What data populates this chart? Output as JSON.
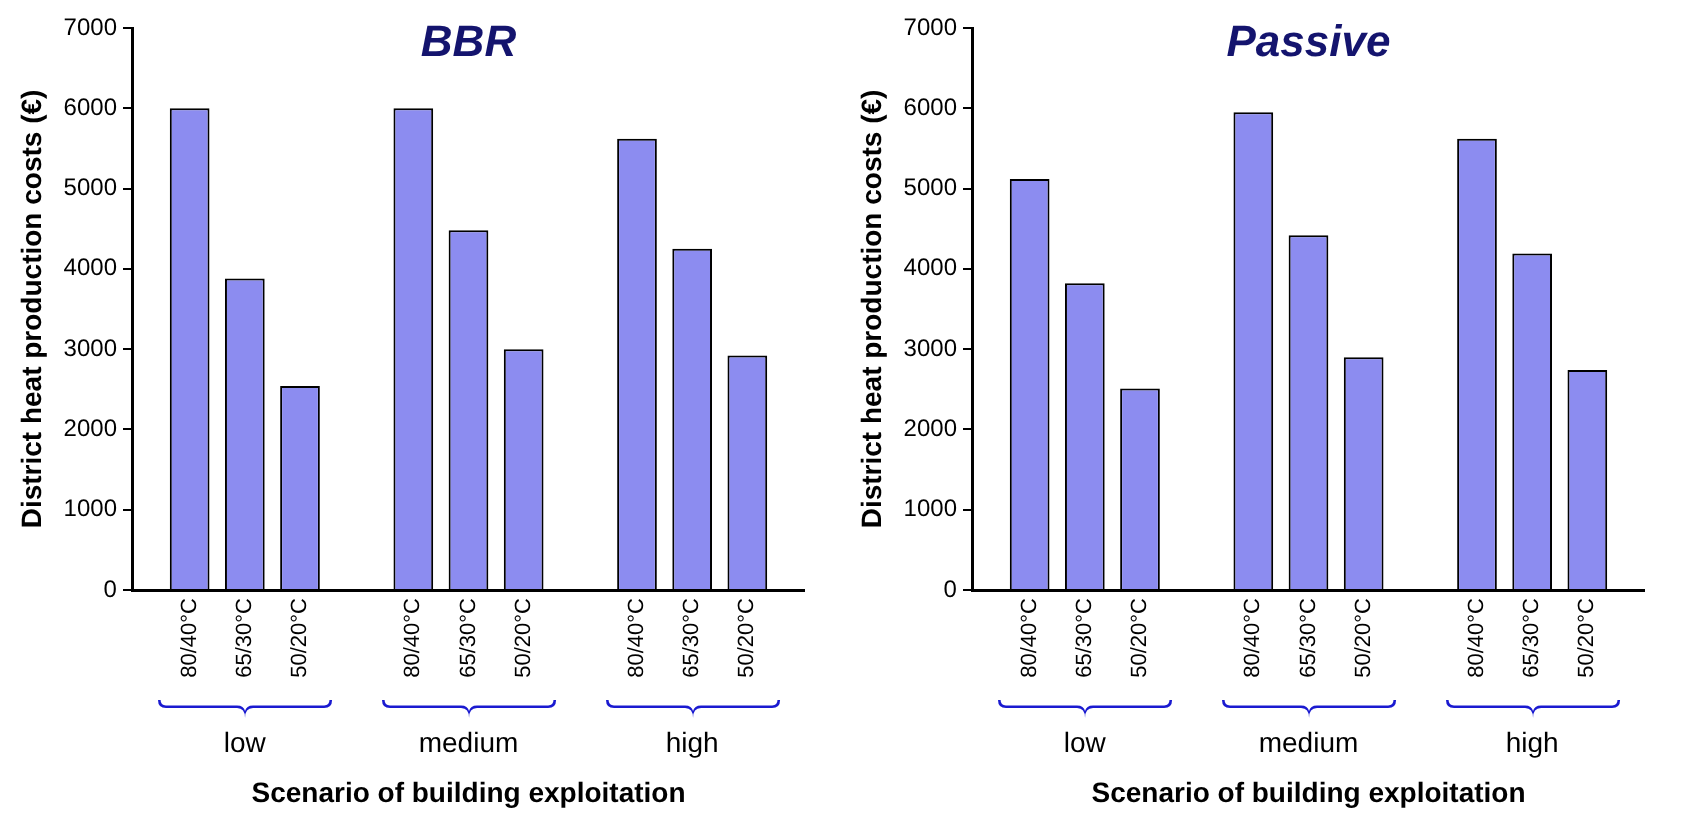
{
  "chart_data": [
    {
      "type": "bar",
      "title": "BBR",
      "xlabel": "Scenario of building exploitation",
      "ylabel": "District heat production costs (€)",
      "categories": [
        "low",
        "medium",
        "high"
      ],
      "series": [
        {
          "name": "80/40°C",
          "color": "#8c8cf0",
          "values": [
            6000,
            6000,
            5620
          ]
        },
        {
          "name": "65/30°C",
          "color": "#8c8cf0",
          "values": [
            3880,
            4480,
            4250
          ]
        },
        {
          "name": "50/20°C",
          "color": "#8c8cf0",
          "values": [
            2540,
            3000,
            2920
          ]
        }
      ],
      "ylim": [
        0,
        7000
      ],
      "yticks": [
        0,
        1000,
        2000,
        3000,
        4000,
        5000,
        6000,
        7000
      ],
      "grid": false,
      "legend": false
    },
    {
      "type": "bar",
      "title": "Passive",
      "xlabel": "Scenario of building exploitation",
      "ylabel": "District heat production costs (€)",
      "categories": [
        "low",
        "medium",
        "high"
      ],
      "series": [
        {
          "name": "80/40°C",
          "color": "#8c8cf0",
          "values": [
            5120,
            5950,
            5620
          ]
        },
        {
          "name": "65/30°C",
          "color": "#8c8cf0",
          "values": [
            3820,
            4420,
            4190
          ]
        },
        {
          "name": "50/20°C",
          "color": "#8c8cf0",
          "values": [
            2510,
            2900,
            2740
          ]
        }
      ],
      "ylim": [
        0,
        7000
      ],
      "yticks": [
        0,
        1000,
        2000,
        3000,
        4000,
        5000,
        6000,
        7000
      ],
      "grid": false,
      "legend": false
    }
  ]
}
